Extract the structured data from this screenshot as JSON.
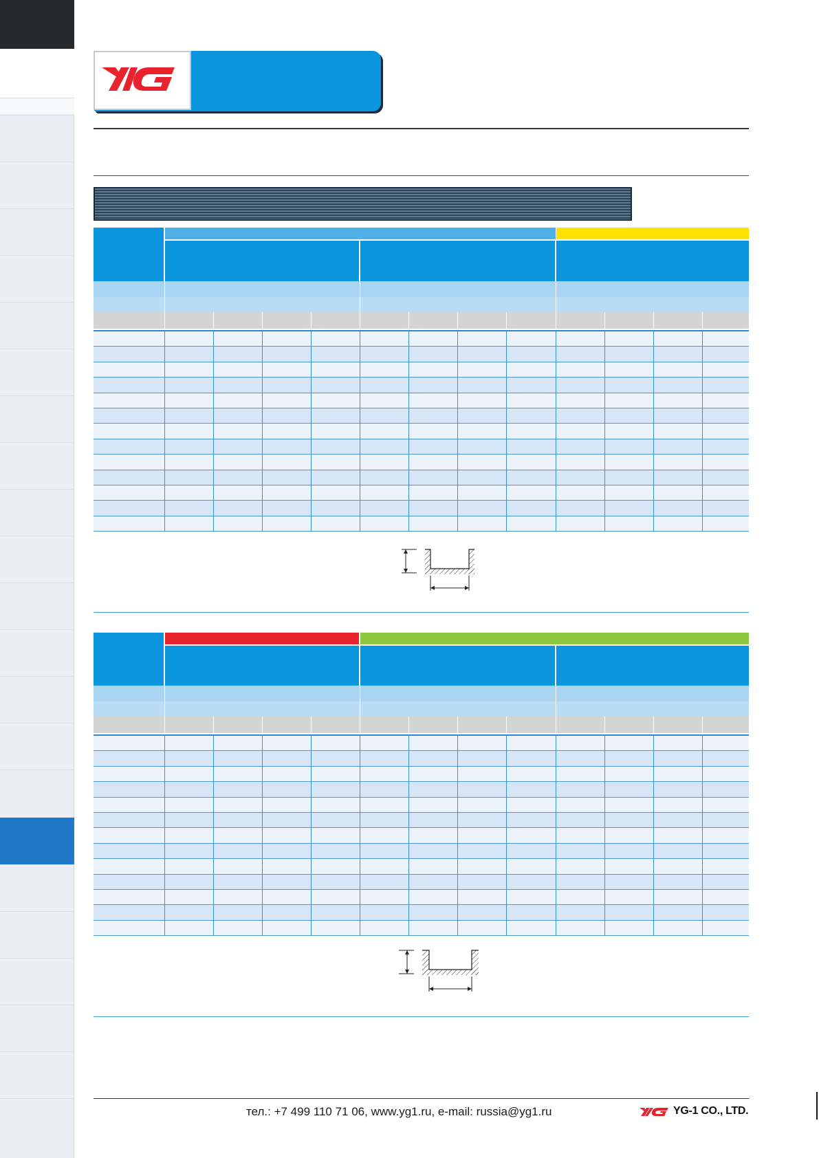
{
  "brand": {
    "logo_text": "YG",
    "logo_color": "#e8232e",
    "accent_blue": "#0a95dd"
  },
  "colors": {
    "bar_light_blue": "#4eb0e6",
    "bar_yellow": "#ffe200",
    "bar_red": "#e8232e",
    "bar_green": "#8dc63f",
    "sidebar_active": "#1f77c8"
  },
  "footer": {
    "contact": "тел.: +7 499 110 71 06, www.yg1.ru, e-mail: russia@yg1.ru",
    "company": "YG-1 CO., LTD.",
    "logo_text": "YG"
  }
}
